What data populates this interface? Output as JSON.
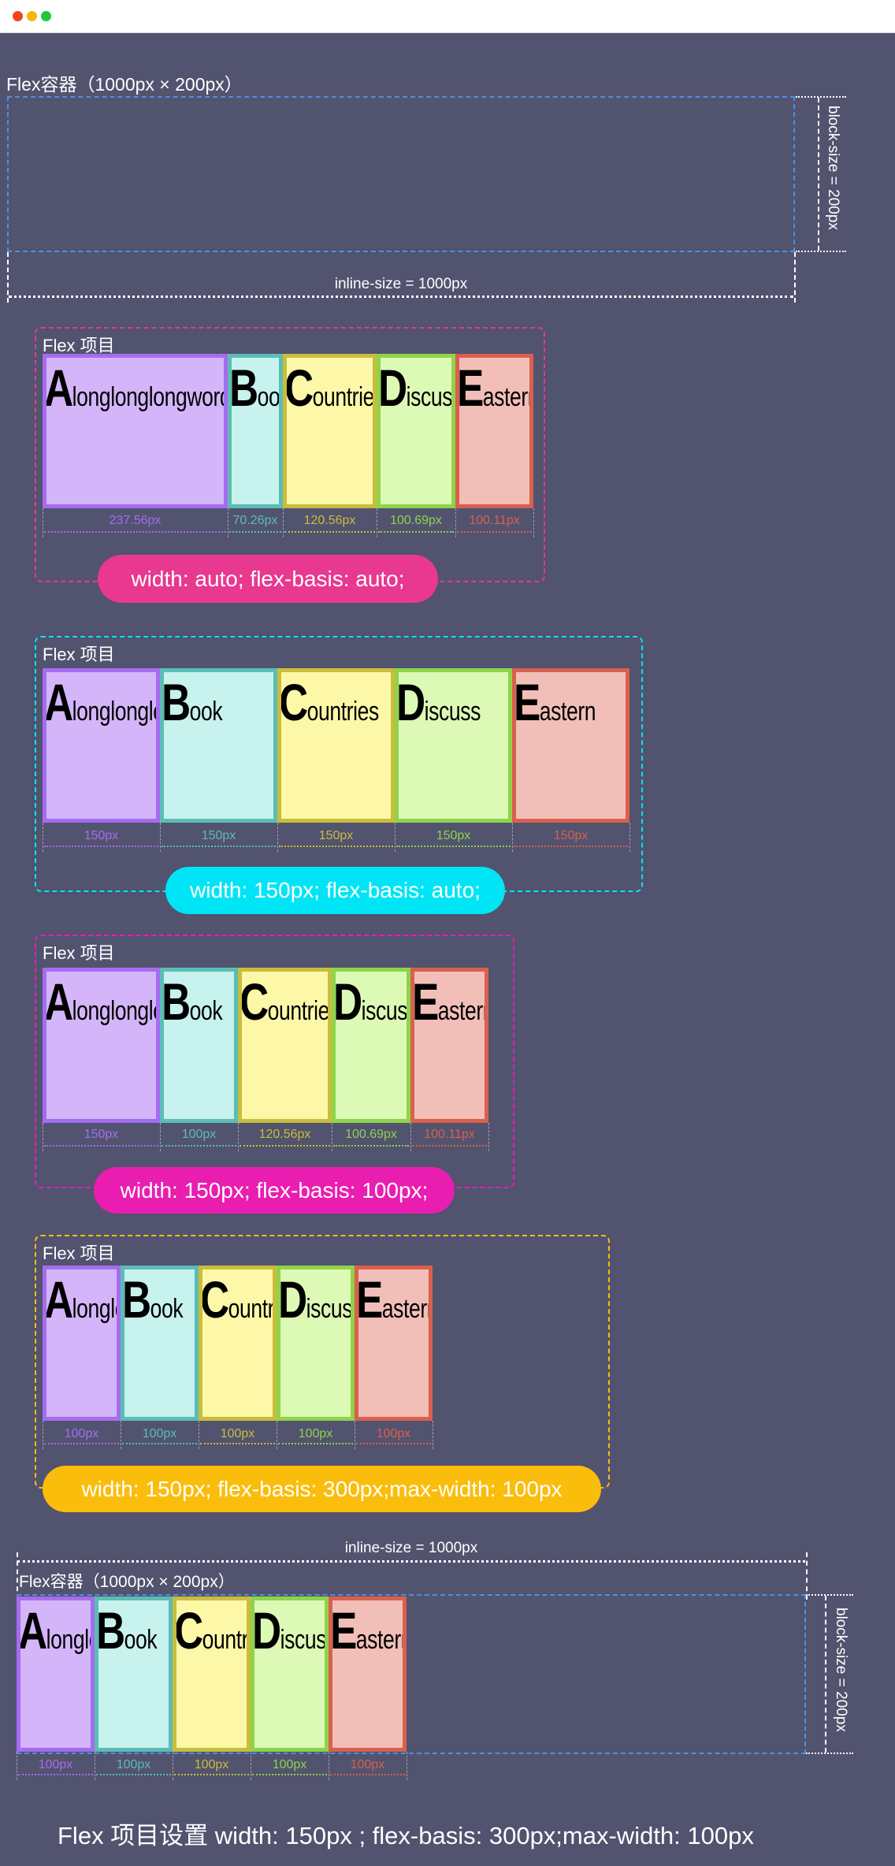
{
  "window": {
    "controls": [
      {
        "name": "close",
        "color": "#f0461e"
      },
      {
        "name": "minimize",
        "color": "#f5b70a"
      },
      {
        "name": "maximize",
        "color": "#1fc93c"
      }
    ]
  },
  "top_container": {
    "title": "Flex容器（1000px × 200px）",
    "inline_size_label": "inline-size = 1000px",
    "block_size_label": "block-size = 200px"
  },
  "item_colors": [
    {
      "fill": "#d4b5f9",
      "border": "#a56cf0"
    },
    {
      "fill": "#c7f2ee",
      "border": "#5bbdb5"
    },
    {
      "fill": "#fdf8a8",
      "border": "#c9bd3c"
    },
    {
      "fill": "#dcf9b5",
      "border": "#8fd34a"
    },
    {
      "fill": "#f2bfb8",
      "border": "#d9604d"
    }
  ],
  "items": [
    {
      "initial": "A",
      "rest": "longlonglongword"
    },
    {
      "initial": "B",
      "rest": "ook"
    },
    {
      "initial": "C",
      "rest": "ountries"
    },
    {
      "initial": "D",
      "rest": "iscuss"
    },
    {
      "initial": "E",
      "rest": "astern"
    }
  ],
  "sections": [
    {
      "label": "Flex 项目",
      "badge": "width: auto; flex-basis: auto;",
      "color": "#e8388f",
      "widths": [
        "237.56px",
        "70.26px",
        "120.56px",
        "100.69px",
        "100.11px"
      ]
    },
    {
      "label": "Flex 项目",
      "badge": "width: 150px; flex-basis: auto;",
      "color": "#00e5f5",
      "widths": [
        "150px",
        "150px",
        "150px",
        "150px",
        "150px"
      ]
    },
    {
      "label": "Flex 项目",
      "badge": "width: 150px; flex-basis: 100px;",
      "color": "#e91eb0",
      "widths": [
        "150px",
        "100px",
        "120.56px",
        "100.69px",
        "100.11px"
      ]
    },
    {
      "label": "Flex 项目",
      "badge": "width: 150px; flex-basis: 300px;max-width: 100px",
      "color": "#fbbd0c",
      "widths": [
        "100px",
        "100px",
        "100px",
        "100px",
        "100px"
      ]
    }
  ],
  "bottom_container": {
    "title": "Flex容器（1000px × 200px）",
    "inline_size_label": "inline-size = 1000px",
    "block_size_label": "block-size = 200px",
    "widths": [
      "100px",
      "100px",
      "100px",
      "100px",
      "100px"
    ]
  },
  "caption": "Flex 项目设置 width: 150px ; flex-basis: 300px;max-width: 100px"
}
